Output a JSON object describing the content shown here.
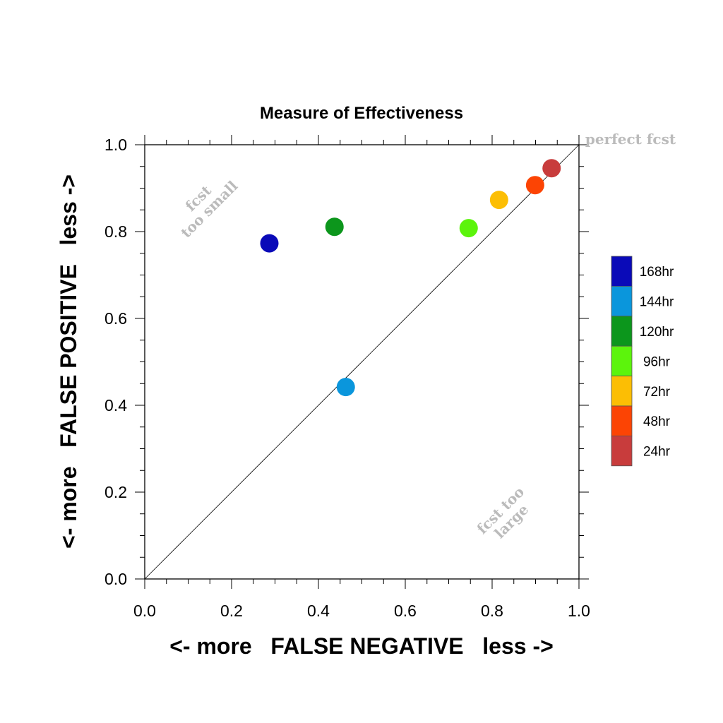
{
  "chart_data": {
    "type": "scatter",
    "title": "Measure of Effectiveness",
    "xlabel": "<- more   FALSE NEGATIVE   less ->",
    "ylabel": "<- more   FALSE POSITIVE   less ->",
    "xlim": [
      0.0,
      1.0
    ],
    "ylim": [
      0.0,
      1.0
    ],
    "xticks": [
      "0.0",
      "0.2",
      "0.4",
      "0.6",
      "0.8",
      "1.0"
    ],
    "yticks": [
      "0.0",
      "0.2",
      "0.4",
      "0.6",
      "0.8",
      "1.0"
    ],
    "grid": false,
    "diagonal_reference_line": true,
    "legend_position": "right",
    "annotations": {
      "top_right": "perfect fcst",
      "upper_left": [
        "fcst",
        "too small"
      ],
      "lower_right": [
        "fcst too",
        "large"
      ]
    },
    "series": [
      {
        "name": "168hr",
        "color": "#0a0ab8",
        "x": 0.287,
        "y": 0.773
      },
      {
        "name": "144hr",
        "color": "#0a96dc",
        "x": 0.463,
        "y": 0.442
      },
      {
        "name": "120hr",
        "color": "#0c961c",
        "x": 0.437,
        "y": 0.811
      },
      {
        "name": "96hr",
        "color": "#5cf40c",
        "x": 0.746,
        "y": 0.808
      },
      {
        "name": "72hr",
        "color": "#fcbe04",
        "x": 0.816,
        "y": 0.873
      },
      {
        "name": "48hr",
        "color": "#fc4404",
        "x": 0.899,
        "y": 0.907
      },
      {
        "name": "24hr",
        "color": "#c83c3c",
        "x": 0.937,
        "y": 0.946
      }
    ]
  }
}
